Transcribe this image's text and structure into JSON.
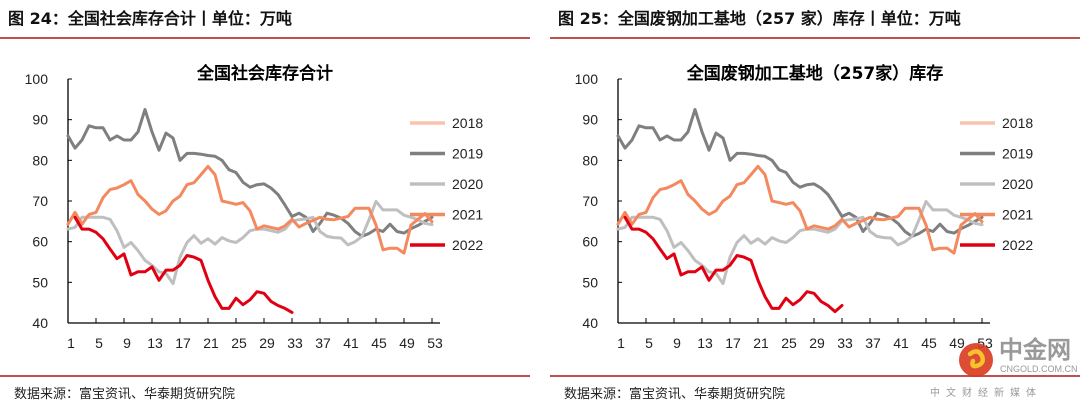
{
  "figures": [
    {
      "header": "图 24：全国社会库存合计丨单位：万吨",
      "source": "数据来源：富宝资讯、华泰期货研究院"
    },
    {
      "header": "图 25：全国废钢加工基地（257 家）库存丨单位：万吨",
      "source": "数据来源：富宝资讯、华泰期货研究院"
    }
  ],
  "watermark": {
    "brand": "中金网",
    "url": "CNGOLD.COM.CN",
    "tagline": "中文财经新媒体"
  },
  "chart_data": [
    {
      "type": "line",
      "title": "全国社会库存合计",
      "ylim": [
        40,
        100
      ],
      "yticks": [
        "40",
        "50",
        "60",
        "70",
        "80",
        "90",
        "100"
      ],
      "xlim": [
        1,
        53
      ],
      "xticks": [
        "1",
        "5",
        "9",
        "13",
        "17",
        "21",
        "25",
        "29",
        "33",
        "37",
        "41",
        "45",
        "49",
        "53"
      ],
      "grid": false,
      "legend": "right",
      "series": [
        {
          "name": "2018",
          "color": "#F8C4AE",
          "values": []
        },
        {
          "name": "2019",
          "color": "#7F7F7F",
          "values": [
            86,
            83,
            85,
            88.5,
            88,
            88,
            85,
            86,
            85,
            85,
            87,
            92.5,
            87,
            82.5,
            86.7,
            85.5,
            80,
            81.7,
            81.7,
            81.5,
            81.2,
            81,
            80,
            77.7,
            77,
            74.6,
            73.4,
            74,
            74.2,
            73.2,
            71.6,
            69,
            66.2,
            67,
            66,
            62.5,
            64.5,
            67,
            66.5,
            65.8,
            64.5,
            62.5,
            61.3,
            62,
            63.1,
            62.5,
            64.3,
            62.5,
            62.1,
            63.2,
            64,
            65,
            66
          ]
        },
        {
          "name": "2020",
          "color": "#BFBFBF",
          "values": [
            63.1,
            63.5,
            66,
            66,
            66,
            66,
            65.5,
            62.7,
            58.6,
            59.8,
            57.8,
            55.4,
            54.2,
            52.6,
            52.2,
            49.7,
            56.2,
            59.8,
            61.5,
            59.6,
            60.7,
            59.4,
            61,
            60.2,
            59.8,
            61,
            62.7,
            63.1,
            63.1,
            62.7,
            62.3,
            63.1,
            65.1,
            65.4,
            65.6,
            66,
            62.5,
            61.3,
            61,
            60.9,
            59.2,
            60,
            61.3,
            65.4,
            69.9,
            67.8,
            67.8,
            67.8,
            66.5,
            66,
            65.4,
            64.5,
            64.2
          ]
        },
        {
          "name": "2021",
          "color": "#F4895F",
          "values": [
            64.3,
            67.2,
            64.3,
            66.7,
            67.2,
            70.8,
            72.8,
            73.2,
            74,
            75,
            71.6,
            70,
            68,
            66.7,
            67.6,
            70,
            71.2,
            74,
            74.5,
            76.5,
            78.5,
            76.5,
            70,
            69.6,
            69.2,
            69.6,
            67.6,
            63.1,
            63.9,
            63.5,
            63.1,
            63.9,
            65.5,
            63.6,
            64.5,
            65.2,
            66,
            65.5,
            65.4,
            65.8,
            66.2,
            68.2,
            68.2,
            68.2,
            64.1,
            58,
            58.4,
            58.4,
            57.2,
            64.1,
            65.5,
            66.9,
            64.9
          ]
        },
        {
          "name": "2022",
          "color": "#E00012",
          "values": [
            null,
            66,
            63.1,
            63.1,
            62.3,
            60.7,
            58.2,
            55.8,
            57,
            51.8,
            52.6,
            52.6,
            53.8,
            50.5,
            53,
            53,
            54.2,
            56.6,
            56.2,
            55.4,
            50.5,
            46.5,
            43.6,
            43.6,
            46.1,
            44.5,
            45.7,
            47.7,
            47.3,
            45.3,
            44.3,
            43.6,
            42.6
          ]
        }
      ]
    },
    {
      "type": "line",
      "title": "全国废钢加工基地（257家）库存",
      "ylim": [
        40,
        100
      ],
      "yticks": [
        "40",
        "50",
        "60",
        "70",
        "80",
        "90",
        "100"
      ],
      "xlim": [
        1,
        53
      ],
      "xticks": [
        "1",
        "5",
        "9",
        "13",
        "17",
        "21",
        "25",
        "29",
        "33",
        "37",
        "41",
        "45",
        "49",
        "53"
      ],
      "grid": false,
      "legend": "right",
      "series": [
        {
          "name": "2018",
          "color": "#F8C4AE",
          "values": []
        },
        {
          "name": "2019",
          "color": "#7F7F7F",
          "values": [
            86,
            83,
            85,
            88.5,
            88,
            88,
            85,
            86,
            85,
            85,
            87,
            92.5,
            87,
            82.5,
            86.7,
            85.5,
            80,
            81.7,
            81.7,
            81.5,
            81.2,
            81,
            80,
            77.7,
            77,
            74.6,
            73.4,
            74,
            74.2,
            73.2,
            71.6,
            69,
            66.2,
            67,
            66,
            62.5,
            64.5,
            67,
            66.5,
            65.8,
            64.5,
            62.5,
            61.3,
            62,
            63.1,
            62.5,
            64.3,
            62.5,
            62.1,
            63.2,
            64,
            65,
            66
          ]
        },
        {
          "name": "2020",
          "color": "#BFBFBF",
          "values": [
            63.1,
            63.5,
            66,
            66,
            66,
            66,
            65.5,
            62.7,
            58.6,
            59.8,
            57.8,
            55.4,
            54.2,
            52.6,
            52.2,
            49.7,
            56.2,
            59.8,
            61.5,
            59.6,
            60.7,
            59.4,
            61,
            60.2,
            59.8,
            61,
            62.7,
            63.1,
            63.1,
            62.7,
            62.3,
            63.1,
            65.1,
            65.4,
            65.6,
            66,
            62.5,
            61.3,
            61,
            60.9,
            59.2,
            60,
            61.3,
            65.4,
            69.9,
            67.8,
            67.8,
            67.8,
            66.5,
            66,
            65.4,
            64.5,
            64.2
          ]
        },
        {
          "name": "2021",
          "color": "#F4895F",
          "values": [
            64.3,
            67.2,
            64.3,
            66.7,
            67.2,
            70.8,
            72.8,
            73.2,
            74,
            75,
            71.6,
            70,
            68,
            66.7,
            67.6,
            70,
            71.2,
            74,
            74.5,
            76.5,
            78.5,
            76.5,
            70,
            69.6,
            69.2,
            69.6,
            67.6,
            63.1,
            63.9,
            63.5,
            63.1,
            63.9,
            65.5,
            63.6,
            64.5,
            65.2,
            66,
            65.5,
            65.4,
            65.8,
            66.2,
            68.2,
            68.2,
            68.2,
            64.1,
            58,
            58.4,
            58.4,
            57.2,
            64.1,
            65.5,
            66.9,
            64.9
          ]
        },
        {
          "name": "2022",
          "color": "#E00012",
          "values": [
            null,
            66,
            63.1,
            63.1,
            62.3,
            60.7,
            58.2,
            55.8,
            57,
            51.8,
            52.6,
            52.6,
            53.8,
            50.5,
            53,
            53,
            54.2,
            56.6,
            56.2,
            55.4,
            50.5,
            46.5,
            43.6,
            43.6,
            46.1,
            44.5,
            45.7,
            47.7,
            47.3,
            45.3,
            44.3,
            42.8,
            44.3
          ]
        }
      ]
    }
  ]
}
